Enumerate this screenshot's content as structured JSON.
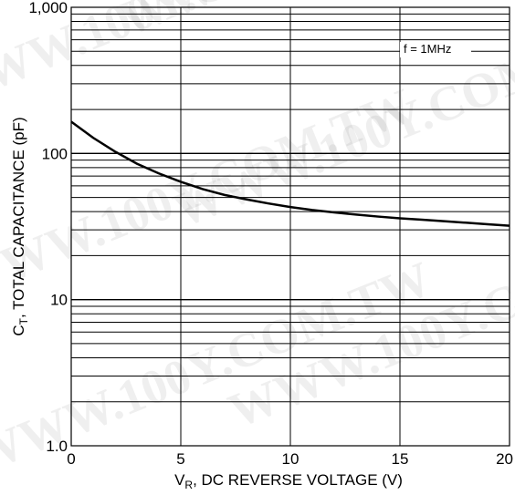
{
  "chart_data": {
    "type": "line",
    "title": "",
    "xlabel": {
      "base": "V",
      "sub": "R",
      "rest": ", DC REVERSE VOLTAGE (V)"
    },
    "ylabel": {
      "base": "C",
      "sub": "T",
      "rest": ", TOTAL CAPACITANCE (pF)"
    },
    "xlim": [
      0,
      20
    ],
    "ylim": [
      1,
      1000
    ],
    "y_scale": "log",
    "grid": true,
    "x_ticks": [
      {
        "value": 0,
        "label": "0"
      },
      {
        "value": 5,
        "label": "5"
      },
      {
        "value": 10,
        "label": "10"
      },
      {
        "value": 15,
        "label": "15"
      },
      {
        "value": 20,
        "label": "20"
      }
    ],
    "y_ticks": [
      {
        "value": 1,
        "label": "1.0"
      },
      {
        "value": 10,
        "label": "10"
      },
      {
        "value": 100,
        "label": "100"
      },
      {
        "value": 1000,
        "label": "1,000"
      }
    ],
    "annotation": "f = 1MHz",
    "annotation_position": "top-right",
    "series": [
      {
        "x": [
          0,
          1,
          2,
          3,
          4,
          5,
          6,
          7,
          8,
          9,
          10,
          11,
          12,
          13,
          14,
          15,
          16,
          17,
          18,
          19,
          20
        ],
        "y": [
          165,
          128,
          103,
          85,
          73,
          64,
          57,
          52,
          48.5,
          45.5,
          43,
          41,
          39.5,
          38.2,
          37,
          36,
          35.2,
          34.4,
          33.6,
          32.8,
          32
        ]
      }
    ],
    "colors": {
      "line": "#000000",
      "grid": "#000000",
      "background": "#ffffff"
    }
  },
  "watermark": {
    "text": "WWW.100Y.COM.TW"
  }
}
